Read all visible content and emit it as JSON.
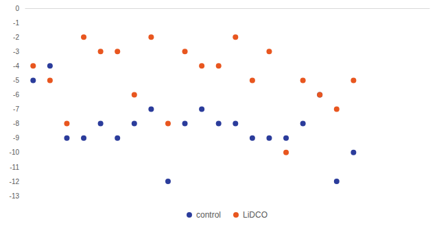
{
  "chart_data": {
    "type": "scatter",
    "x": [
      1,
      2,
      3,
      4,
      5,
      6,
      7,
      8,
      9,
      10,
      11,
      12,
      13,
      14,
      15,
      16,
      17,
      18,
      19,
      20
    ],
    "xlim": [
      0.5,
      24.5
    ],
    "ylim": [
      -13,
      0
    ],
    "yticks": [
      0,
      -1,
      -2,
      -3,
      -4,
      -5,
      -6,
      -7,
      -8,
      -9,
      -10,
      -11,
      -12,
      -13
    ],
    "tick_labels": "y",
    "grid": false,
    "legend": "bottom",
    "series": [
      {
        "name": "control",
        "color": "#2b3c9b",
        "marker": "circle",
        "values": [
          -5,
          -4,
          -9,
          -9,
          -8,
          -9,
          -8,
          -7,
          -12,
          -8,
          -7,
          -8,
          -8,
          -9,
          -9,
          -9,
          -8,
          -6,
          -12,
          -10
        ]
      },
      {
        "name": "LiDCO",
        "color": "#e8561f",
        "marker": "circle",
        "values": [
          -4,
          -5,
          -8,
          -2,
          -3,
          -3,
          -6,
          -2,
          -8,
          -3,
          -4,
          -4,
          -2,
          -5,
          -3,
          -10,
          -5,
          -6,
          -7,
          -5
        ]
      }
    ]
  }
}
